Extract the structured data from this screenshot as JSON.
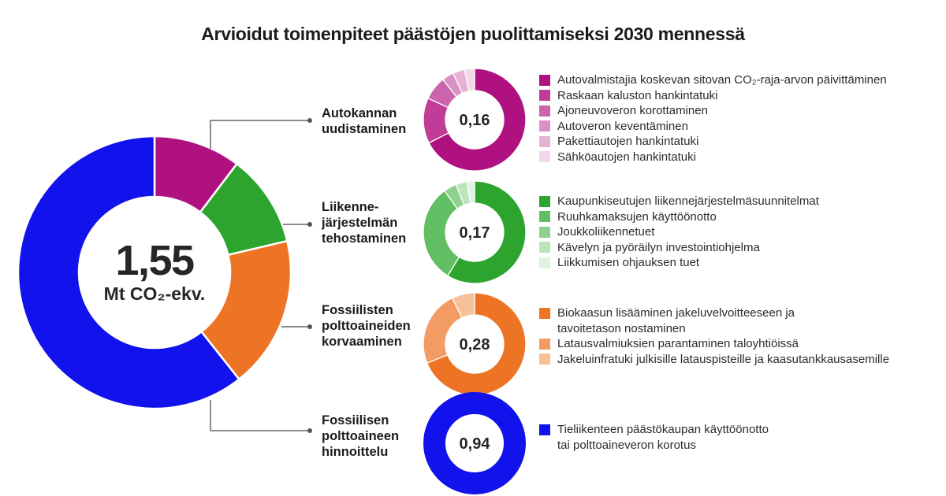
{
  "title": "Arvioidut toimenpiteet päästöjen puolittamiseksi 2030 mennessä",
  "main_donut": {
    "total_value": "1,55",
    "unit": "Mt CO₂-ekv."
  },
  "rows": [
    {
      "label": "Autokannan\nuudistaminen",
      "value": "0,16",
      "legend": [
        {
          "label": "Autovalmistajia koskevan sitovan CO₂-raja-arvon päivittäminen",
          "color": "#b01180"
        },
        {
          "label": "Raskaan kaluston hankintatuki",
          "color": "#c03c96"
        },
        {
          "label": "Ajoneuvoveron korottaminen",
          "color": "#cb64ac"
        },
        {
          "label": "Autoveron keventäminen",
          "color": "#d990c4"
        },
        {
          "label": "Pakettiautojen hankintatuki",
          "color": "#e5b2d6"
        },
        {
          "label": "Sähköautojen hankintatuki",
          "color": "#f2d8ea"
        }
      ]
    },
    {
      "label": "Liikenne-\njärjestelmän\ntehostaminen",
      "value": "0,17",
      "legend": [
        {
          "label": "Kaupunkiseutujen liikennejärjestelmäsuunnitelmat",
          "color": "#2da42d"
        },
        {
          "label": "Ruuhkamaksujen käyttöönotto",
          "color": "#62be62"
        },
        {
          "label": "Joukkoliikennetuet",
          "color": "#90d190"
        },
        {
          "label": "Kävelyn ja pyöräilyn investointiohjelma",
          "color": "#bce4bc"
        },
        {
          "label": "Liikkumisen ohjauksen tuet",
          "color": "#e0f2e0"
        }
      ]
    },
    {
      "label": "Fossiilisten\npolttoaineiden\nkorvaaminen",
      "value": "0,28",
      "legend": [
        {
          "label": "Biokaasun lisääminen jakeluvelvoitteeseen ja\ntavoitetason nostaminen",
          "color": "#ee7425"
        },
        {
          "label": "Latausvalmiuksien parantaminen taloyhtiöissä",
          "color": "#f29b63"
        },
        {
          "label": "Jakeluinfratuki julkisille latauspisteille ja kaasutankkausasemille",
          "color": "#f7c096"
        }
      ]
    },
    {
      "label": "Fossiilisen\npolttoaineen\nhinnoittelu",
      "value": "0,94",
      "legend": [
        {
          "label": "Tieliikenteen päästökaupan käyttöönotto\ntai polttoaineveron korotus",
          "color": "#1212ec"
        }
      ]
    }
  ],
  "chart_data": [
    {
      "type": "pie",
      "variant": "donut",
      "title": "Arvioidut toimenpiteet päästöjen puolittamiseksi 2030 mennessä",
      "center_label": "1,55",
      "center_unit": "Mt CO₂-ekv.",
      "total": 1.55,
      "start_angle": "top",
      "direction": "clockwise",
      "segments": [
        {
          "label": "Autokannan uudistaminen",
          "value": 0.16,
          "color": "#b01180"
        },
        {
          "label": "Liikennejärjestelmän tehostaminen",
          "value": 0.17,
          "color": "#2da42d"
        },
        {
          "label": "Fossiilisten polttoaineiden korvaaminen",
          "value": 0.28,
          "color": "#ee7425"
        },
        {
          "label": "Fossiilisen polttoaineen hinnoittelu",
          "value": 0.94,
          "color": "#1212ec"
        }
      ]
    },
    {
      "type": "pie",
      "variant": "donut",
      "group": "Autokannan uudistaminen",
      "center_label": "0,16",
      "total": 0.16,
      "values_estimated_from_arc_angles": true,
      "segments": [
        {
          "label": "Autovalmistajia koskevan sitovan CO₂-raja-arvon päivittäminen",
          "value": 0.108,
          "color": "#b01180"
        },
        {
          "label": "Raskaan kaluston hankintatuki",
          "value": 0.023,
          "color": "#c03c96"
        },
        {
          "label": "Ajoneuvoveron korottaminen",
          "value": 0.012,
          "color": "#cb64ac"
        },
        {
          "label": "Autoveron keventäminen",
          "value": 0.006,
          "color": "#d990c4"
        },
        {
          "label": "Pakettiautojen hankintatuki",
          "value": 0.006,
          "color": "#e5b2d6"
        },
        {
          "label": "Sähköautojen hankintatuki",
          "value": 0.005,
          "color": "#f2d8ea"
        }
      ]
    },
    {
      "type": "pie",
      "variant": "donut",
      "group": "Liikennejärjestelmän tehostaminen",
      "center_label": "0,17",
      "total": 0.17,
      "values_estimated_from_arc_angles": true,
      "segments": [
        {
          "label": "Kaupunkiseutujen liikennejärjestelmäsuunnitelmat",
          "value": 0.1,
          "color": "#2da42d"
        },
        {
          "label": "Ruuhkamaksujen käyttöönotto",
          "value": 0.053,
          "color": "#62be62"
        },
        {
          "label": "Joukkoliikennetuet",
          "value": 0.007,
          "color": "#90d190"
        },
        {
          "label": "Kävelyn ja pyöräilyn investointiohjelma",
          "value": 0.006,
          "color": "#bce4bc"
        },
        {
          "label": "Liikkumisen ohjauksen tuet",
          "value": 0.004,
          "color": "#e0f2e0"
        }
      ]
    },
    {
      "type": "pie",
      "variant": "donut",
      "group": "Fossiilisten polttoaineiden korvaaminen",
      "center_label": "0,28",
      "total": 0.28,
      "values_estimated_from_arc_angles": true,
      "segments": [
        {
          "label": "Biokaasun lisääminen jakeluvelvoitteeseen ja tavoitetason nostaminen",
          "value": 0.193,
          "color": "#ee7425"
        },
        {
          "label": "Latausvalmiuksien parantaminen taloyhtiöissä",
          "value": 0.067,
          "color": "#f29b63"
        },
        {
          "label": "Jakeluinfratuki julkisille latauspisteille ja kaasutankkausasemille",
          "value": 0.02,
          "color": "#f7c096"
        }
      ]
    },
    {
      "type": "pie",
      "variant": "donut",
      "group": "Fossiilisen polttoaineen hinnoittelu",
      "center_label": "0,94",
      "total": 0.94,
      "segments": [
        {
          "label": "Tieliikenteen päästökaupan käyttöönotto tai polttoaineveron korotus",
          "value": 0.94,
          "color": "#1212ec"
        }
      ]
    }
  ]
}
